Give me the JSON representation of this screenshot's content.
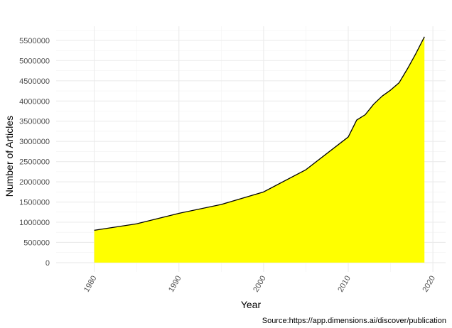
{
  "chart_data": {
    "type": "area",
    "title": "",
    "xlabel": "Year",
    "ylabel": "Number of Articles",
    "caption": "Source:https://app.dimensions.ai/discover/publication",
    "xlim": [
      1975.5,
      2021.5
    ],
    "ylim": [
      -230000,
      5850000
    ],
    "x_ticks": [
      1980,
      1990,
      2000,
      2010,
      2020
    ],
    "y_ticks": [
      0,
      500000,
      1000000,
      1500000,
      2000000,
      2500000,
      3000000,
      3500000,
      4000000,
      4500000,
      5000000,
      5500000
    ],
    "grid": true,
    "fill_color": "#ffff00",
    "line_color": "#000000",
    "series": [
      {
        "x": [
          1980,
          1985,
          1990,
          1995,
          2000,
          2005,
          2010,
          2011,
          2012,
          2013,
          2014,
          2015,
          2016,
          2017,
          2018,
          2019
        ],
        "values": [
          800000,
          960000,
          1220000,
          1440000,
          1750000,
          2300000,
          3110000,
          3530000,
          3660000,
          3920000,
          4120000,
          4270000,
          4450000,
          4800000,
          5180000,
          5590000
        ]
      }
    ]
  }
}
